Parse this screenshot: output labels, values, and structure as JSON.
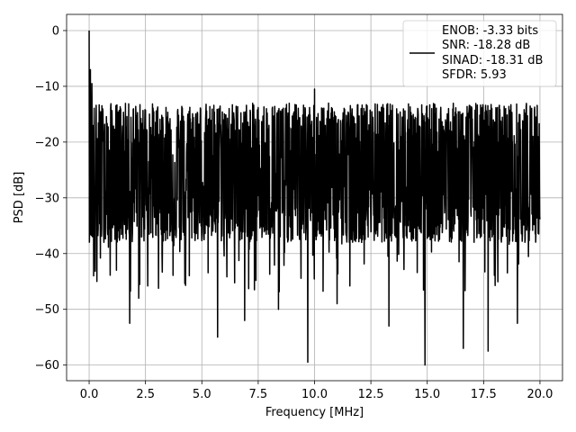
{
  "chart_data": {
    "type": "line",
    "title": "",
    "xlabel": "Frequency [MHz]",
    "ylabel": "PSD [dB]",
    "xlim": [
      -1.0,
      21.0
    ],
    "ylim": [
      -62.8,
      2.9
    ],
    "x_ticks": [
      0.0,
      2.5,
      5.0,
      7.5,
      10.0,
      12.5,
      15.0,
      17.5,
      20.0
    ],
    "x_tick_labels": [
      "0.0",
      "2.5",
      "5.0",
      "7.5",
      "10.0",
      "12.5",
      "15.0",
      "17.5",
      "20.0"
    ],
    "y_ticks": [
      0,
      -10,
      -20,
      -30,
      -40,
      -50,
      -60
    ],
    "y_tick_labels": [
      "0",
      "−10",
      "−20",
      "−30",
      "−40",
      "−50",
      "−60"
    ],
    "grid": true,
    "legend_position": "top-right",
    "legend_lines": [
      "ENOB: -3.33 bits",
      "SNR: -18.28 dB",
      "SINAD: -18.31 dB",
      "SFDR: 5.93"
    ],
    "series": [
      {
        "color": "#000000",
        "x_start": 0.0,
        "x_end": 20.0,
        "noise_floor_center_db": -25,
        "noise_upper_envelope_db": -13,
        "noise_lower_envelope_db": -38,
        "peaks": [
          {
            "x": 0.0,
            "y": 0.0
          },
          {
            "x": 0.05,
            "y": -7.0
          },
          {
            "x": 0.12,
            "y": -9.5
          },
          {
            "x": 10.0,
            "y": -10.5
          }
        ],
        "dips": [
          {
            "x": 0.2,
            "y": -44.0
          },
          {
            "x": 0.35,
            "y": -45.0
          },
          {
            "x": 1.8,
            "y": -52.5
          },
          {
            "x": 2.2,
            "y": -48.0
          },
          {
            "x": 5.7,
            "y": -55.0
          },
          {
            "x": 6.9,
            "y": -52.0
          },
          {
            "x": 8.4,
            "y": -50.0
          },
          {
            "x": 9.7,
            "y": -59.5
          },
          {
            "x": 11.0,
            "y": -49.0
          },
          {
            "x": 13.3,
            "y": -53.0
          },
          {
            "x": 14.9,
            "y": -60.0
          },
          {
            "x": 16.6,
            "y": -57.0
          },
          {
            "x": 17.7,
            "y": -57.5
          },
          {
            "x": 19.0,
            "y": -52.5
          }
        ]
      }
    ]
  }
}
